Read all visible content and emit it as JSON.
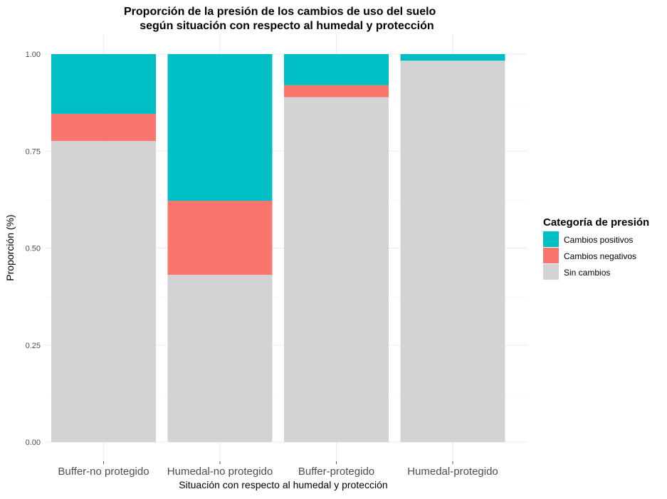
{
  "chart_data": {
    "type": "bar",
    "stacked": true,
    "title": "Proporción de la presión de los cambios de uso del suelo\n     según situación con respecto al humedal y protección",
    "xlabel": "Situación con respecto al humedal y protección",
    "ylabel": "Proporción (%)",
    "ylim": [
      0,
      1
    ],
    "yticks": [
      "0.00",
      "0.25",
      "0.50",
      "0.75",
      "1.00"
    ],
    "ytick_values": [
      0,
      0.25,
      0.5,
      0.75,
      1.0
    ],
    "grid": true,
    "legend_position": "right",
    "legend_title": "Categoría de presión",
    "categories": [
      "Buffer-no protegido",
      "Humedal-no protegido",
      "Buffer-protegido",
      "Humedal-protegido"
    ],
    "series": [
      {
        "name": "Sin cambios",
        "color": "#d3d3d3",
        "values": [
          0.776,
          0.431,
          0.889,
          0.983
        ]
      },
      {
        "name": "Cambios negativos",
        "color": "#f8766d",
        "values": [
          0.07,
          0.191,
          0.031,
          0.0
        ]
      },
      {
        "name": "Cambios positivos",
        "color": "#00bfc4",
        "values": [
          0.154,
          0.378,
          0.08,
          0.017
        ]
      }
    ],
    "legend_order": [
      "Cambios positivos",
      "Cambios negativos",
      "Sin cambios"
    ]
  }
}
